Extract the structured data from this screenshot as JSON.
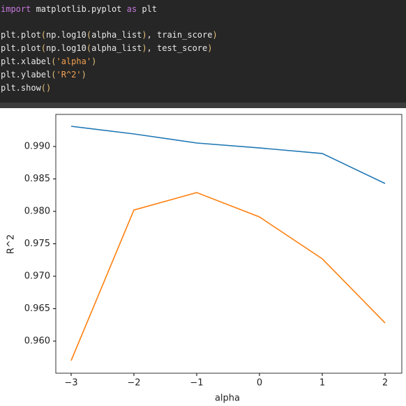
{
  "code": {
    "lines": [
      [
        "import",
        " matplotlib.pyplot ",
        "as",
        " plt"
      ],
      [
        "plt.plot",
        "(",
        "np.log10",
        "(",
        "alpha_list",
        ")",
        ", train_score",
        ")"
      ],
      [
        "plt.plot",
        "(",
        "np.log10",
        "(",
        "alpha_list",
        ")",
        ", test_score",
        ")"
      ],
      [
        "plt.xlabel",
        "(",
        "'alpha'",
        ")"
      ],
      [
        "plt.ylabel",
        "(",
        "'R^2'",
        ")"
      ],
      [
        "plt.show",
        "()"
      ]
    ]
  },
  "chart_data": {
    "type": "line",
    "xlabel": "alpha",
    "ylabel": "R^2",
    "x": [
      -3,
      -2,
      -1,
      0,
      1,
      2
    ],
    "series": [
      {
        "color": "#1f77b4",
        "values": [
          0.99312,
          0.99194,
          0.99054,
          0.98978,
          0.98892,
          0.9843
        ]
      },
      {
        "color": "#ff7f0e",
        "values": [
          0.95699,
          0.98021,
          0.9829,
          0.97914,
          0.97269,
          0.9628
        ]
      }
    ],
    "xlim": [
      -3.244,
      2.267
    ],
    "ylim": [
      0.95505,
      0.99495
    ],
    "xticks": [
      {
        "value": -3,
        "label": "−3"
      },
      {
        "value": -2,
        "label": "−2"
      },
      {
        "value": -1,
        "label": "−1"
      },
      0,
      1,
      2
    ],
    "yticks": [
      {
        "value": 0.96,
        "label": "0.960"
      },
      {
        "value": 0.965,
        "label": "0.965"
      },
      {
        "value": 0.97,
        "label": "0.970"
      },
      {
        "value": 0.975,
        "label": "0.975"
      },
      {
        "value": 0.98,
        "label": "0.980"
      },
      {
        "value": 0.985,
        "label": "0.985"
      },
      {
        "value": 0.99,
        "label": "0.990"
      }
    ]
  }
}
